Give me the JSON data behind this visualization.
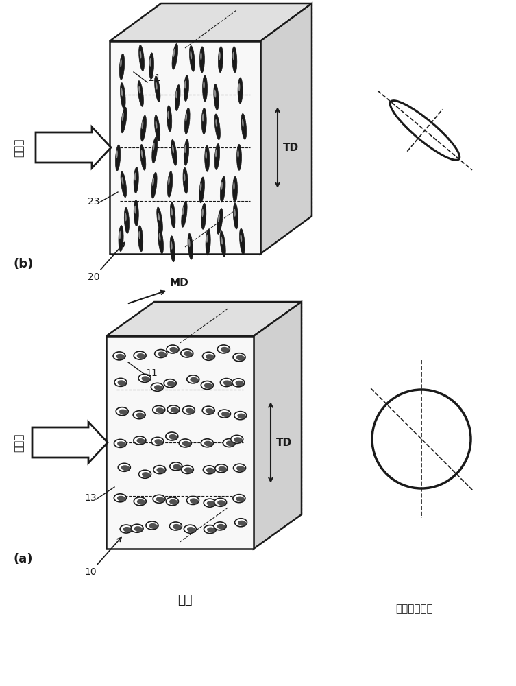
{
  "bg_color": "#ffffff",
  "line_color": "#1a1a1a",
  "label_a": "(a)",
  "label_b": "(b)",
  "label_10": "10",
  "label_11": "11",
  "label_13": "13",
  "label_20": "20",
  "label_21": "21",
  "label_23": "23",
  "label_MD": "MD",
  "label_TD": "TD",
  "label_input_light": "入射光",
  "label_structure": "構造",
  "label_reflected": "反射光の形状"
}
